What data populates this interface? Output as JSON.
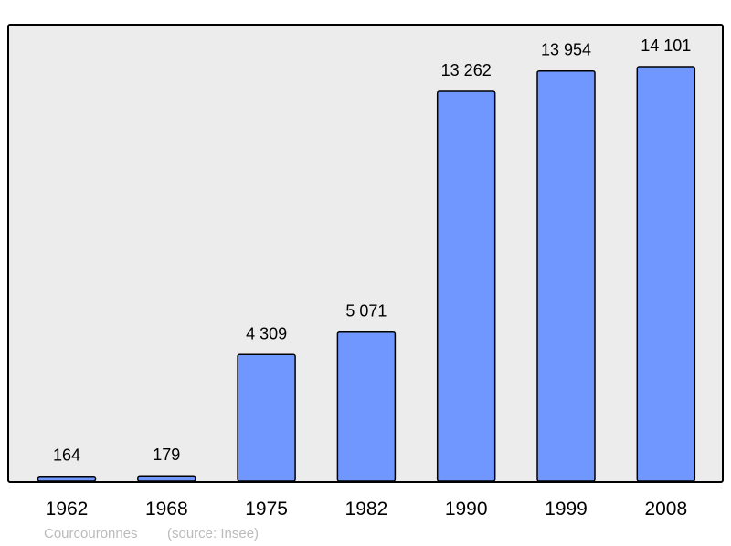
{
  "chart_data": {
    "type": "bar",
    "categories": [
      "1962",
      "1968",
      "1975",
      "1982",
      "1990",
      "1999",
      "2008"
    ],
    "values": [
      164,
      179,
      4309,
      5071,
      13262,
      13954,
      14101
    ],
    "value_labels": [
      "164",
      "179",
      "4 309",
      "5 071",
      "13 262",
      "13 954",
      "14 101"
    ],
    "ylim": [
      0,
      15530
    ],
    "grid": false,
    "legend": "none",
    "caption_place": "Courcouronnes",
    "caption_source": "(source: Insee)",
    "colors": {
      "bar": "#7097ff",
      "background": "#ececec",
      "frame": "#000000"
    }
  }
}
